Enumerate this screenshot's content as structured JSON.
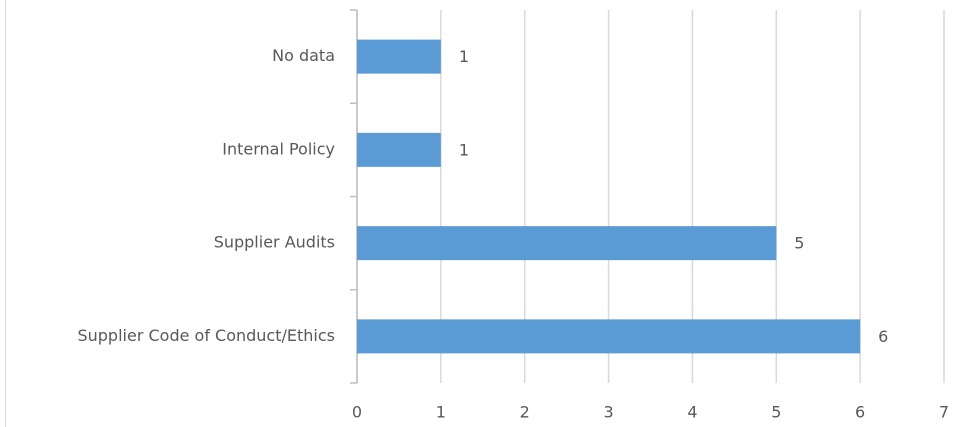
{
  "chart_data": {
    "type": "hbar",
    "categories": [
      "No data",
      "Internal Policy",
      "Supplier Audits",
      "Supplier Code of Conduct/Ethics"
    ],
    "values": [
      1,
      1,
      5,
      6
    ],
    "color": "#5b9bd5",
    "xlim": [
      0,
      7
    ],
    "xticks": [
      0,
      1,
      2,
      3,
      4,
      5,
      6,
      7
    ],
    "grid": true,
    "data_labels": true
  }
}
